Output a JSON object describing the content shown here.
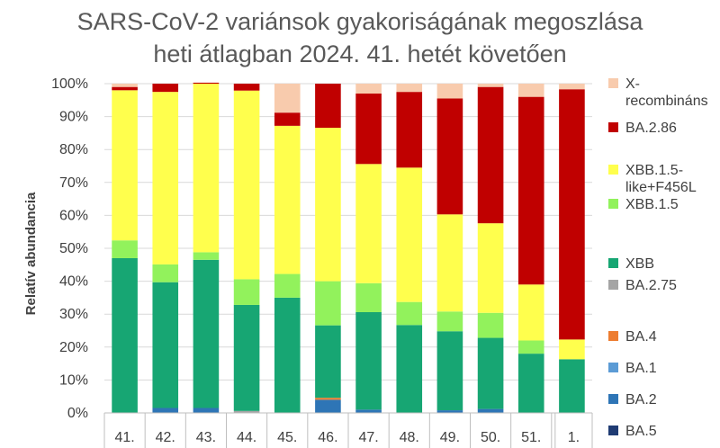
{
  "chart_data": {
    "type": "bar",
    "stacked": true,
    "title": "SARS-CoV-2 variánsok gyakoriságának megoszlása heti átlagban 2024. 41. hetét követően",
    "title_lines": [
      "SARS-CoV-2 variánsok gyakoriságának megoszlása",
      "heti átlagban 2024. 41. hetét követően"
    ],
    "ylabel": "Relatív abundancia",
    "xlabel": "",
    "ylim": [
      0,
      100
    ],
    "yticks": [
      "0%",
      "10%",
      "20%",
      "30%",
      "40%",
      "50%",
      "60%",
      "70%",
      "80%",
      "90%",
      "100%"
    ],
    "categories": [
      "41.",
      "42.",
      "43.",
      "44.",
      "45.",
      "46.",
      "47.",
      "48.",
      "49.",
      "50.",
      "51.",
      "1."
    ],
    "grid": true,
    "legend_position": "right",
    "series": [
      {
        "name": "BA.5",
        "color": "#1f3b73",
        "values": [
          0,
          0,
          0,
          0,
          0,
          0,
          0,
          0,
          0,
          0,
          0,
          0
        ]
      },
      {
        "name": "BA.2",
        "color": "#2e75b6",
        "values": [
          0,
          1.5,
          1.5,
          0,
          0,
          4,
          1,
          0,
          0.8,
          1.2,
          0,
          0
        ]
      },
      {
        "name": "BA.1",
        "color": "#5b9bd5",
        "values": [
          0,
          0,
          0,
          0,
          0,
          0,
          0,
          0,
          0,
          0,
          0,
          0
        ]
      },
      {
        "name": "BA.4",
        "color": "#ed7d31",
        "values": [
          0,
          0,
          0,
          0,
          0,
          0.6,
          0,
          0,
          0,
          0,
          0,
          0
        ]
      },
      {
        "name": "BA.2.75",
        "color": "#a5a5a5",
        "values": [
          0,
          0,
          0,
          0.6,
          0,
          0,
          0,
          0,
          0,
          0,
          0,
          0
        ]
      },
      {
        "name": "XBB",
        "color": "#17a673",
        "values": [
          47,
          38.2,
          45,
          32.2,
          35,
          22,
          29.6,
          26.7,
          24,
          21.6,
          18,
          16.3
        ]
      },
      {
        "name": "XBB.1.5",
        "color": "#92f25c",
        "values": [
          5.4,
          5.4,
          2.3,
          7.8,
          7.2,
          13.4,
          8.8,
          7,
          6,
          7.6,
          4,
          0
        ]
      },
      {
        "name": "XBB.1.5-like+F456L",
        "color": "#ffff4d",
        "values": [
          45.6,
          52.4,
          51.2,
          57.3,
          45,
          46.6,
          36.2,
          40.8,
          29.5,
          27.2,
          17,
          6
        ]
      },
      {
        "name": "BA.2.86",
        "color": "#c00000",
        "values": [
          1,
          2.5,
          0.3,
          2.1,
          4,
          13.4,
          21.4,
          23,
          35.2,
          41.4,
          57,
          76
        ]
      },
      {
        "name": "X-recombináns",
        "color": "#f8cbad",
        "values": [
          1,
          0,
          0,
          0,
          8.8,
          0,
          3,
          2.5,
          4.5,
          1,
          4,
          1.7
        ]
      }
    ]
  }
}
